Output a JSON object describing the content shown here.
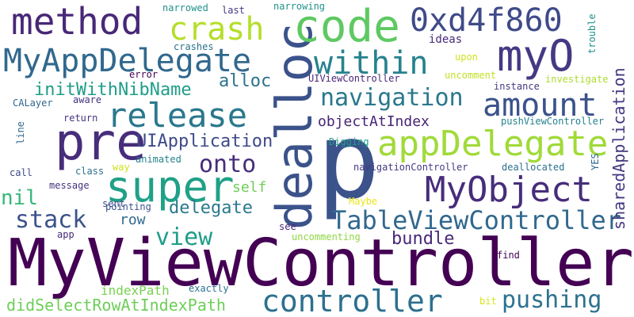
{
  "words": [
    {
      "text": "MyViewController",
      "color": "#440154"
    },
    {
      "text": "p",
      "color": "#3b528b"
    },
    {
      "text": "dealloc",
      "color": "#3b528b"
    },
    {
      "text": "method",
      "color": "#482878"
    },
    {
      "text": "code",
      "color": "#5ec962"
    },
    {
      "text": "0xd4f860",
      "color": "#3e4a89"
    },
    {
      "text": "crash",
      "color": "#b5de2b"
    },
    {
      "text": "MyAppDelegate",
      "color": "#31688e"
    },
    {
      "text": "within",
      "color": "#26828e"
    },
    {
      "text": "myO",
      "color": "#443983"
    },
    {
      "text": "pre",
      "color": "#472d7b"
    },
    {
      "text": "release",
      "color": "#2a788e"
    },
    {
      "text": "amount",
      "color": "#3b528b"
    },
    {
      "text": "initWithNibName",
      "color": "#1f9e89"
    },
    {
      "text": "alloc",
      "color": "#2c728e"
    },
    {
      "text": "navigation",
      "color": "#2a788e"
    },
    {
      "text": "appDelegate",
      "color": "#a0da39"
    },
    {
      "text": "super",
      "color": "#1fa187"
    },
    {
      "text": "UIApplication",
      "color": "#3e4a89"
    },
    {
      "text": "onto",
      "color": "#472d7b"
    },
    {
      "text": "MyObject",
      "color": "#472d7b"
    },
    {
      "text": "objectAtIndex",
      "color": "#482576"
    },
    {
      "text": "stack",
      "color": "#3b528b"
    },
    {
      "text": "nil",
      "color": "#35b779"
    },
    {
      "text": "delegate",
      "color": "#2a788e"
    },
    {
      "text": "view",
      "color": "#1f9e89"
    },
    {
      "text": "TableViewController",
      "color": "#31688e"
    },
    {
      "text": "sharedApplication",
      "color": "#453781"
    },
    {
      "text": "bundle",
      "color": "#482878"
    },
    {
      "text": "controller",
      "color": "#2d708e"
    },
    {
      "text": "pushing",
      "color": "#2c728e"
    },
    {
      "text": "didSelectRowAtIndexPath",
      "color": "#6ece58"
    },
    {
      "text": "indexPath",
      "color": "#7ad151"
    },
    {
      "text": "self",
      "color": "#6ece58"
    },
    {
      "text": "row",
      "color": "#31688e"
    },
    {
      "text": "narrowed",
      "color": "#21918c"
    },
    {
      "text": "narrowing",
      "color": "#21918c"
    },
    {
      "text": "ideas",
      "color": "#482878"
    },
    {
      "text": "trouble",
      "color": "#21918c"
    },
    {
      "text": "last",
      "color": "#443983"
    },
    {
      "text": "error",
      "color": "#440154"
    },
    {
      "text": "crashes",
      "color": "#2c728e"
    },
    {
      "text": "upon",
      "color": "#d0e11c"
    },
    {
      "text": "uncomment",
      "color": "#c2df23"
    },
    {
      "text": "investigate",
      "color": "#addc30"
    },
    {
      "text": "instance",
      "color": "#453781"
    },
    {
      "text": "UIViewController",
      "color": "#482878"
    },
    {
      "text": "aware",
      "color": "#46337e"
    },
    {
      "text": "return",
      "color": "#46337e"
    },
    {
      "text": "CALayer",
      "color": "#31688e"
    },
    {
      "text": "line",
      "color": "#31688e"
    },
    {
      "text": "pushViewController",
      "color": "#26828e"
    },
    {
      "text": "Digging",
      "color": "#1f9e89"
    },
    {
      "text": "YES",
      "color": "#31688e"
    },
    {
      "text": "deallocated",
      "color": "#2d708e"
    },
    {
      "text": "navigationController",
      "color": "#443983"
    },
    {
      "text": "animated",
      "color": "#26828e"
    },
    {
      "text": "way",
      "color": "#d0e11c"
    },
    {
      "text": "class",
      "color": "#2d708e"
    },
    {
      "text": "call",
      "color": "#3e4a89"
    },
    {
      "text": "message",
      "color": "#46337e"
    },
    {
      "text": "sent",
      "color": "#3e4a89"
    },
    {
      "text": "pointing",
      "color": "#3b528b"
    },
    {
      "text": "Maybe",
      "color": "#e7e419"
    },
    {
      "text": "see",
      "color": "#482878"
    },
    {
      "text": "uncommenting",
      "color": "#8fd744"
    },
    {
      "text": "app",
      "color": "#482878"
    },
    {
      "text": "find",
      "color": "#440154"
    },
    {
      "text": "exactly",
      "color": "#2c728e"
    },
    {
      "text": "bit",
      "color": "#d8e219"
    }
  ]
}
